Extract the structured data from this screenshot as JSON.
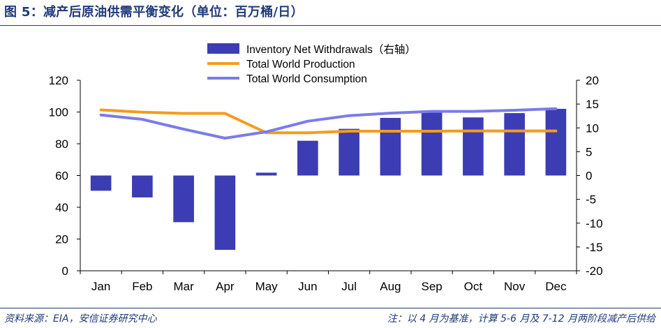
{
  "header": {
    "title": "图 5：减产后原油供需平衡变化（单位：百万桶/日）"
  },
  "footer": {
    "source": "资料来源：EIA，安信证券研究中心",
    "note": "注：以 4 月为基准，计算 5-6 月及 7-12 月两阶段减产后供给"
  },
  "chart_data": {
    "type": "bar+line",
    "categories": [
      "Jan",
      "Feb",
      "Mar",
      "Apr",
      "May",
      "Jun",
      "Jul",
      "Aug",
      "Sep",
      "Oct",
      "Nov",
      "Dec"
    ],
    "y_left": {
      "ylim": [
        0,
        120
      ],
      "ticks": [
        0,
        20,
        40,
        60,
        80,
        100,
        120
      ]
    },
    "y_right": {
      "ylim": [
        -20,
        20
      ],
      "ticks": [
        -20,
        -15,
        -10,
        -5,
        0,
        5,
        10,
        15,
        20
      ]
    },
    "grid": false,
    "legend_position": "top-center",
    "series": [
      {
        "name": "Inventory Net Withdrawals（右轴）",
        "type": "bar",
        "axis": "right",
        "color": "#3c3cb4",
        "values": [
          -3.2,
          -4.6,
          -9.8,
          -15.6,
          0.6,
          7.3,
          9.8,
          12.1,
          13.2,
          12.2,
          13.1,
          14.0
        ]
      },
      {
        "name": "Total World Production",
        "type": "line",
        "axis": "left",
        "color": "#f59c1a",
        "values": [
          101.3,
          99.9,
          99.1,
          99.1,
          86.9,
          86.9,
          87.9,
          87.9,
          87.9,
          88.1,
          88.1,
          88.1
        ]
      },
      {
        "name": "Total World Consumption",
        "type": "line",
        "axis": "left",
        "color": "#7b7bea",
        "values": [
          98.1,
          95.4,
          89.2,
          83.5,
          87.5,
          94.2,
          97.7,
          99.3,
          100.4,
          100.4,
          101.1,
          102.1
        ]
      }
    ]
  }
}
